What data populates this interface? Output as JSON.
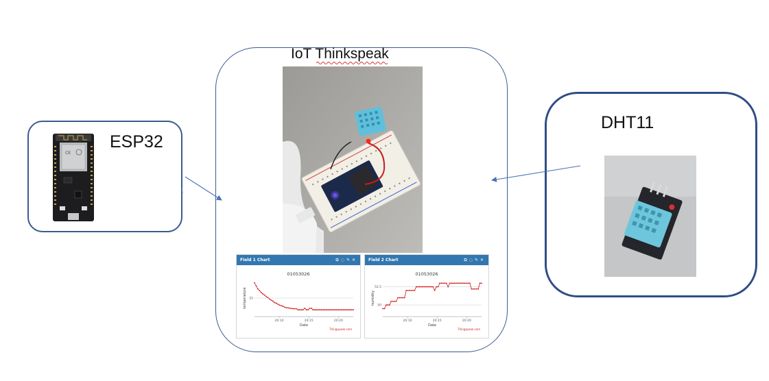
{
  "labels": {
    "esp32": "ESP32",
    "iot": "IoT Thinkspeak",
    "dht11": "DHT11"
  },
  "colors": {
    "box_border": "#2f4d85",
    "arrow": "#4a72b8",
    "chart_header": "#3277b0",
    "series": "#d01515"
  },
  "panels": [
    {
      "header": "Field 1 Chart",
      "icons": [
        "external-link-icon",
        "comment-icon",
        "pencil-icon",
        "close-icon"
      ],
      "footer": "Thingspeak.com"
    },
    {
      "header": "Field 2 Chart",
      "icons": [
        "external-link-icon",
        "comment-icon",
        "pencil-icon",
        "close-icon"
      ],
      "footer": "Thingspeak.com"
    }
  ],
  "chart_data": [
    {
      "type": "line",
      "title": "01053026",
      "xlabel": "Date",
      "ylabel": "temperature",
      "x_ticks": [
        "20:10",
        "20:15",
        "20:20"
      ],
      "y_ticks": [
        25
      ],
      "ylim": [
        21.5,
        28.5
      ],
      "series": [
        {
          "values": [
            28,
            27.4,
            26.8,
            26.5,
            26.1,
            25.8,
            25.6,
            25.3,
            25.1,
            24.8,
            24.6,
            24.4,
            24.1,
            24.0,
            23.8,
            23.6,
            23.5,
            23.4,
            23.2,
            23.1,
            23.1,
            23.0,
            23.0,
            22.9,
            22.9,
            22.9,
            22.7,
            22.7,
            22.7,
            22.7,
            23.0,
            22.7,
            22.7,
            23.0,
            23.0,
            22.7,
            22.7,
            22.7,
            22.7,
            22.7,
            22.7,
            22.7,
            22.7,
            22.7,
            22.7,
            22.7,
            22.7,
            22.7,
            22.7,
            22.7,
            22.7,
            22.7,
            22.7,
            22.7,
            22.7,
            22.7,
            22.7,
            22.7,
            22.7,
            22.7
          ]
        }
      ]
    },
    {
      "type": "line",
      "title": "01053026",
      "xlabel": "Date",
      "ylabel": "humidity",
      "x_ticks": [
        "20:10",
        "20:15",
        "20:20"
      ],
      "y_ticks": [
        50,
        52.5
      ],
      "ylim": [
        48.5,
        53.4
      ],
      "series": [
        {
          "values": [
            49.5,
            49.5,
            50,
            50,
            50,
            50.5,
            50.5,
            50.5,
            50.5,
            51,
            51,
            51,
            51,
            51,
            52,
            52,
            52,
            52,
            52,
            52,
            52.5,
            52.5,
            52.5,
            52.5,
            52.5,
            52.5,
            52.5,
            52.5,
            52.5,
            52.5,
            52.5,
            52,
            52.5,
            52.5,
            53,
            53,
            53,
            53,
            53,
            52.5,
            53,
            53,
            53,
            53,
            53,
            53,
            53,
            53,
            53,
            53,
            53,
            53,
            53,
            52.2,
            52.2,
            52.2,
            52.2,
            52.2,
            53,
            53
          ]
        }
      ]
    }
  ]
}
